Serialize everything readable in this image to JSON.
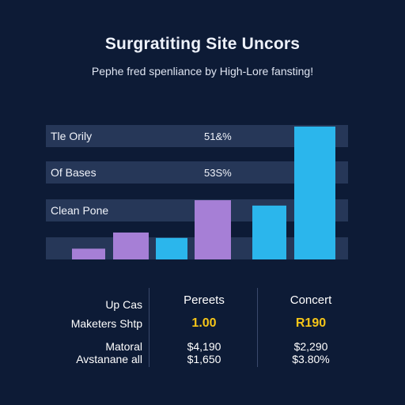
{
  "header": {
    "title": "Surgratiting Site Uncors",
    "subtitle": "Pephe fred spenliance by High-Lore fansting!"
  },
  "chart_data": {
    "type": "bar",
    "title": "Surgratiting Site Uncors",
    "subtitle": "Pephe fred spenliance by High-Lore fansting!",
    "row_labels": [
      {
        "label": "Tle Orily",
        "value": "51&%"
      },
      {
        "label": "Of Bases",
        "value": "53S%"
      },
      {
        "label": "Clean Pone",
        "value": ""
      }
    ],
    "values": [
      6,
      15,
      12,
      33,
      30,
      74
    ],
    "colors": [
      "#a67fd6",
      "#a67fd6",
      "#2bb6ec",
      "#a67fd6",
      "#2bb6ec",
      "#2bb6ec"
    ],
    "ylim": [
      0,
      74
    ]
  },
  "table": {
    "columns": [
      "Pereets",
      "Concert"
    ],
    "rows": [
      {
        "label": "Up Cas",
        "values": [
          "",
          ""
        ]
      },
      {
        "label": "Maketers Shtp",
        "values": [
          "1.00",
          "R190"
        ]
      },
      {
        "label": "Matoral",
        "values": [
          "$4,190",
          "$2,290"
        ]
      },
      {
        "label": "Avstanane all",
        "values": [
          "$1,650",
          "$3.80%"
        ]
      }
    ]
  }
}
